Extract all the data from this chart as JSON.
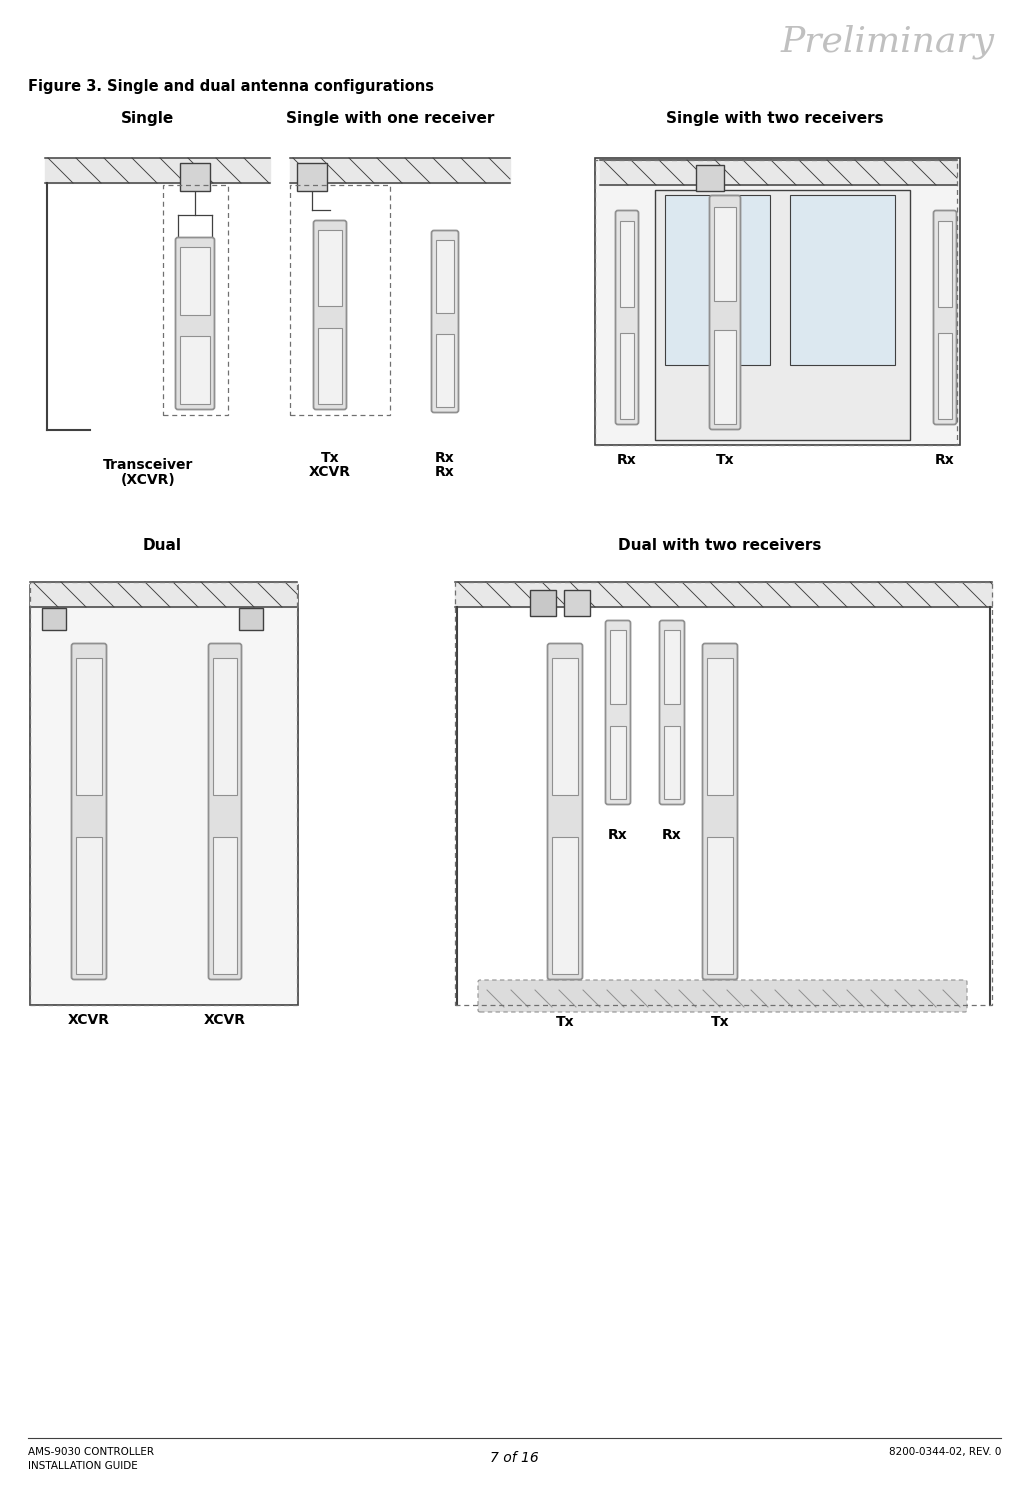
{
  "page_title": "Preliminary",
  "figure_title": "Figure 3. Single and dual antenna configurations",
  "footer_left_line1": "AMS-9030 CONTROLLER",
  "footer_left_line2": "INSTALLATION GUIDE",
  "footer_center": "7 of 16",
  "footer_right": "8200-0344-02, REV. 0",
  "bg_color": "#ffffff",
  "text_color": "#000000",
  "light_gray": "#d0d0d0",
  "mid_gray": "#909090",
  "line_color": "#404040",
  "dashed_color": "#707070",
  "device_fill": "#d8d8d8",
  "glass_fill": "#dce8f0",
  "ceiling_fill": "#e8e8e8"
}
